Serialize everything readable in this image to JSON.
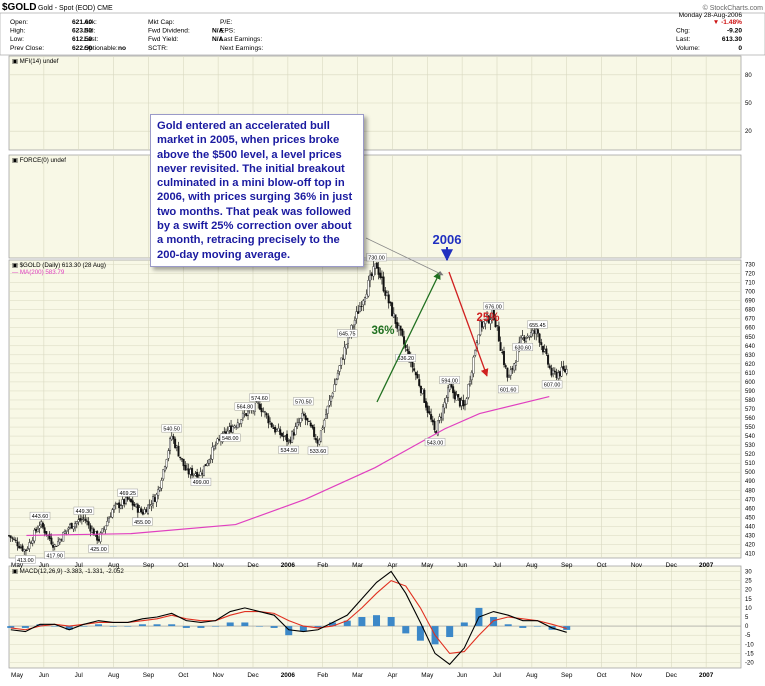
{
  "header": {
    "symbol": "$GOLD",
    "description": "Gold - Spot (EOD) CME",
    "date": "Monday 28-Aug-2006",
    "watermark": "© StockCharts.com",
    "col1": [
      [
        "Open:",
        "621.60"
      ],
      [
        "High:",
        "623.50"
      ],
      [
        "Low:",
        "612.50"
      ],
      [
        "Prev Close:",
        "622.50"
      ]
    ],
    "col2": [
      [
        "Ask:",
        ""
      ],
      [
        "Bid:",
        ""
      ],
      [
        "Last:",
        ""
      ],
      [
        "Optionable:",
        "no"
      ]
    ],
    "col3": [
      [
        "Mkt Cap:",
        ""
      ],
      [
        "Fwd Dividend:",
        "N/A"
      ],
      [
        "Fwd Yield:",
        "N/A"
      ],
      [
        "SCTR:",
        ""
      ]
    ],
    "col4": [
      [
        "P/E:",
        ""
      ],
      [
        "EPS:",
        ""
      ],
      [
        "Last Earnings:",
        ""
      ],
      [
        "Next Earnings:",
        ""
      ]
    ],
    "col5": [
      [
        "",
        "▼ -1.48%"
      ],
      [
        "Chg:",
        "-9.20"
      ],
      [
        "Last:",
        "613.30"
      ],
      [
        "Volume:",
        "0"
      ]
    ]
  },
  "annotation": {
    "text": "Gold entered an accelerated bull market in 2005, when prices broke above the $500 level, a level prices never revisited. The initial breakout culminated in a mini blow-off top in 2006, with prices surging 36% in just two months. That peak was followed by a swift 25% correction over about a month, retracing precisely to the 200-day moving average.",
    "year_label": "2006",
    "rise_label": "36%",
    "fall_label": "25%"
  },
  "colors": {
    "panel_bg": "#f8f8e6",
    "grid": "#d8d8c0",
    "candle": "#111111",
    "ma200": "#e040c0",
    "macd_line": "#000000",
    "signal_line": "#e03020",
    "histogram": "#3c88c8",
    "rise_arrow": "#207020",
    "fall_arrow": "#d02020",
    "annotation_text": "#1a1aa0",
    "year_label": "#2030c0"
  },
  "chart_data": [
    {
      "type": "line",
      "name": "MFI panel",
      "title": "MFI(14) undef",
      "ylim": [
        0,
        100
      ],
      "y_ticks": [
        80,
        50,
        20
      ],
      "series": []
    },
    {
      "type": "line",
      "name": "FORCE panel",
      "title": "FORCE(0) undef",
      "series": []
    },
    {
      "type": "candlestick",
      "title": "$GOLD (Daily) 613.30 (28 Aug)",
      "legend": [
        "$GOLD (Daily) 613.30 (28 Aug)",
        "MA(200) 583.79"
      ],
      "ylim": [
        405,
        735
      ],
      "y_ticks": [
        730,
        720,
        710,
        700,
        690,
        680,
        670,
        660,
        650,
        640,
        630,
        620,
        610,
        600,
        590,
        580,
        570,
        560,
        550,
        540,
        530,
        520,
        510,
        500,
        490,
        480,
        470,
        460,
        450,
        440,
        430,
        420,
        410
      ],
      "x_ticks": [
        "May",
        "Jun",
        "Jul",
        "Aug",
        "Sep",
        "Oct",
        "Nov",
        "Dec",
        "2006",
        "Feb",
        "Mar",
        "Apr",
        "May",
        "Jun",
        "Jul",
        "Aug",
        "Sep",
        "Oct",
        "Nov",
        "Dec",
        "2007"
      ],
      "series": [
        {
          "name": "$GOLD price (approx. closes)",
          "x": [
            "May 2005",
            "Jun 2005",
            "Jun 2005",
            "Jul 2005",
            "Aug 2005",
            "Aug 2005",
            "Sep 2005",
            "Oct 2005",
            "Oct 2005",
            "Nov 2005",
            "Nov 2005",
            "Dec 2005",
            "Dec 2005",
            "Dec 2005",
            "Jan 2006",
            "Jan 2006",
            "Feb 2006",
            "Feb 2006",
            "Feb 2006",
            "Mar 2006",
            "Mar 2006",
            "Mar 2006",
            "Apr 2006",
            "Apr 2006",
            "May 2006",
            "May 2006",
            "May 2006",
            "Jun 2006",
            "Jun 2006",
            "Jun 2006",
            "Jun 2006",
            "Jul 2006",
            "Jul 2006",
            "Jul 2006",
            "Jul 2006",
            "Aug 2006",
            "Aug 2006",
            "Aug 2006",
            "Aug 2006"
          ],
          "values": [
            428,
            413,
            443.6,
            418,
            440,
            449.3,
            425,
            460,
            469.25,
            455,
            475,
            540.5,
            500,
            499,
            530,
            548,
            564,
            574.6,
            548,
            534.5,
            563,
            533.6,
            590,
            645.75,
            690,
            730,
            680,
            636.2,
            595,
            543,
            594,
            570,
            660,
            676,
            601,
            650,
            655.45,
            607,
            613.3
          ]
        },
        {
          "name": "MA(200)",
          "x": [
            "May 2005",
            "Aug 2005",
            "Nov 2005",
            "Jan 2006",
            "Mar 2006",
            "May 2006",
            "Jun 2006",
            "Aug 2006"
          ],
          "values": [
            430,
            432,
            442,
            470,
            505,
            548,
            565,
            583.79
          ]
        }
      ],
      "annotations": [
        {
          "label": "413.00",
          "x": "Jun 2005",
          "y": 413
        },
        {
          "label": "443.60",
          "x": "Jun 2005",
          "y": 443.6
        },
        {
          "label": "417.90",
          "x": "Jul 2005",
          "y": 417.9
        },
        {
          "label": "449.30",
          "x": "Aug 2005",
          "y": 449.3
        },
        {
          "label": "425.00",
          "x": "Sep 2005",
          "y": 425
        },
        {
          "label": "469.25",
          "x": "Oct 2005",
          "y": 469.25
        },
        {
          "label": "455.00",
          "x": "Nov 2005",
          "y": 455
        },
        {
          "label": "540.50",
          "x": "Dec 2005",
          "y": 540.5
        },
        {
          "label": "499.00",
          "x": "Dec 2005",
          "y": 499
        },
        {
          "label": "564.80",
          "x": "Jan 2006",
          "y": 564.8
        },
        {
          "label": "548.00",
          "x": "Jan 2006",
          "y": 548
        },
        {
          "label": "574.60",
          "x": "Feb 2006",
          "y": 574.6
        },
        {
          "label": "534.50",
          "x": "Feb 2006",
          "y": 534.5
        },
        {
          "label": "570.50",
          "x": "Mar 2006",
          "y": 570.5
        },
        {
          "label": "533.60",
          "x": "Mar 2006",
          "y": 533.6
        },
        {
          "label": "645.75",
          "x": "Apr 2006",
          "y": 645.75
        },
        {
          "label": "730.00",
          "x": "May 2006",
          "y": 730
        },
        {
          "label": "636.20",
          "x": "May 2006",
          "y": 636.2
        },
        {
          "label": "594.00",
          "x": "Jun 2006",
          "y": 594
        },
        {
          "label": "543.00",
          "x": "Jun 2006",
          "y": 543
        },
        {
          "label": "676.00",
          "x": "Jul 2006",
          "y": 676
        },
        {
          "label": "601.60",
          "x": "Jul 2006",
          "y": 601.6
        },
        {
          "label": "655.45",
          "x": "Aug 2006",
          "y": 655.45
        },
        {
          "label": "630.60",
          "x": "Aug 2006",
          "y": 630.6
        },
        {
          "label": "607.00",
          "x": "Aug 2006",
          "y": 607
        }
      ]
    },
    {
      "type": "line",
      "title": "MACD(12,26,9) -3.383, -1.331, -2.052",
      "ylim": [
        -23,
        33
      ],
      "y_ticks": [
        30,
        25,
        20,
        15,
        10,
        5,
        0,
        -5,
        -10,
        -15,
        -20
      ],
      "x_ticks": [
        "May",
        "Jun",
        "Jul",
        "Aug",
        "Sep",
        "Oct",
        "Nov",
        "Dec",
        "2006",
        "Feb",
        "Mar",
        "Apr",
        "May",
        "Jun",
        "Jul",
        "Aug",
        "Sep",
        "Oct",
        "Nov",
        "Dec",
        "2007"
      ],
      "series": [
        {
          "name": "MACD",
          "values": [
            -2,
            -3,
            1,
            1,
            -2,
            1,
            3,
            2,
            2,
            4,
            5,
            7,
            3,
            2,
            3,
            8,
            10,
            8,
            6,
            -2,
            -3,
            -2,
            2,
            6,
            15,
            24,
            30,
            18,
            2,
            -15,
            -21,
            -12,
            5,
            8,
            6,
            3,
            3,
            -1,
            -3.4
          ]
        },
        {
          "name": "Signal",
          "values": [
            -1,
            -2,
            0,
            1,
            0,
            1,
            2,
            2,
            2,
            3,
            4,
            6,
            4,
            3,
            3,
            6,
            8,
            8,
            7,
            3,
            0,
            -1,
            0,
            3,
            10,
            18,
            25,
            22,
            10,
            -5,
            -15,
            -14,
            -5,
            3,
            5,
            4,
            3,
            1,
            -1.3
          ]
        },
        {
          "name": "Histogram",
          "values": [
            -1,
            -1,
            1,
            0,
            -2,
            0,
            1,
            0,
            0,
            1,
            1,
            1,
            -1,
            -1,
            0,
            2,
            2,
            0,
            -1,
            -5,
            -3,
            -1,
            2,
            3,
            5,
            6,
            5,
            -4,
            -8,
            -10,
            -6,
            2,
            10,
            5,
            1,
            -1,
            0,
            -2,
            -2.1
          ]
        }
      ]
    }
  ]
}
